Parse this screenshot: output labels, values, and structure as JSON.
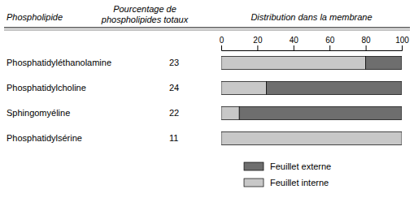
{
  "chart_data": [
    {
      "type": "table",
      "column_labels": [
        "Phospholipide",
        "Pourcentage de\nphospholipides totaux"
      ],
      "categories": [
        "Phosphatidyléthanolamine",
        "Phosphatidylcholine",
        "Sphingomyéline",
        "Phosphatidylsérine"
      ],
      "values": [
        23,
        24,
        22,
        11
      ]
    },
    {
      "type": "bar",
      "title": "Distribution dans la membrane",
      "orientation": "horizontal",
      "stacked": true,
      "categories": [
        "Phosphatidyléthanolamine",
        "Phosphatidylcholine",
        "Sphingomyéline",
        "Phosphatidylsérine"
      ],
      "series": [
        {
          "name": "Feuillet interne",
          "color": "#c8c8c8",
          "values": [
            80,
            25,
            10,
            100
          ]
        },
        {
          "name": "Feuillet externe",
          "color": "#6e6e6e",
          "values": [
            20,
            75,
            90,
            0
          ]
        }
      ],
      "xlim": [
        0,
        100
      ],
      "xticks": [
        0,
        20,
        40,
        60,
        80,
        100
      ],
      "grid": false,
      "legend": "bottom",
      "tick_labels": "x"
    }
  ]
}
